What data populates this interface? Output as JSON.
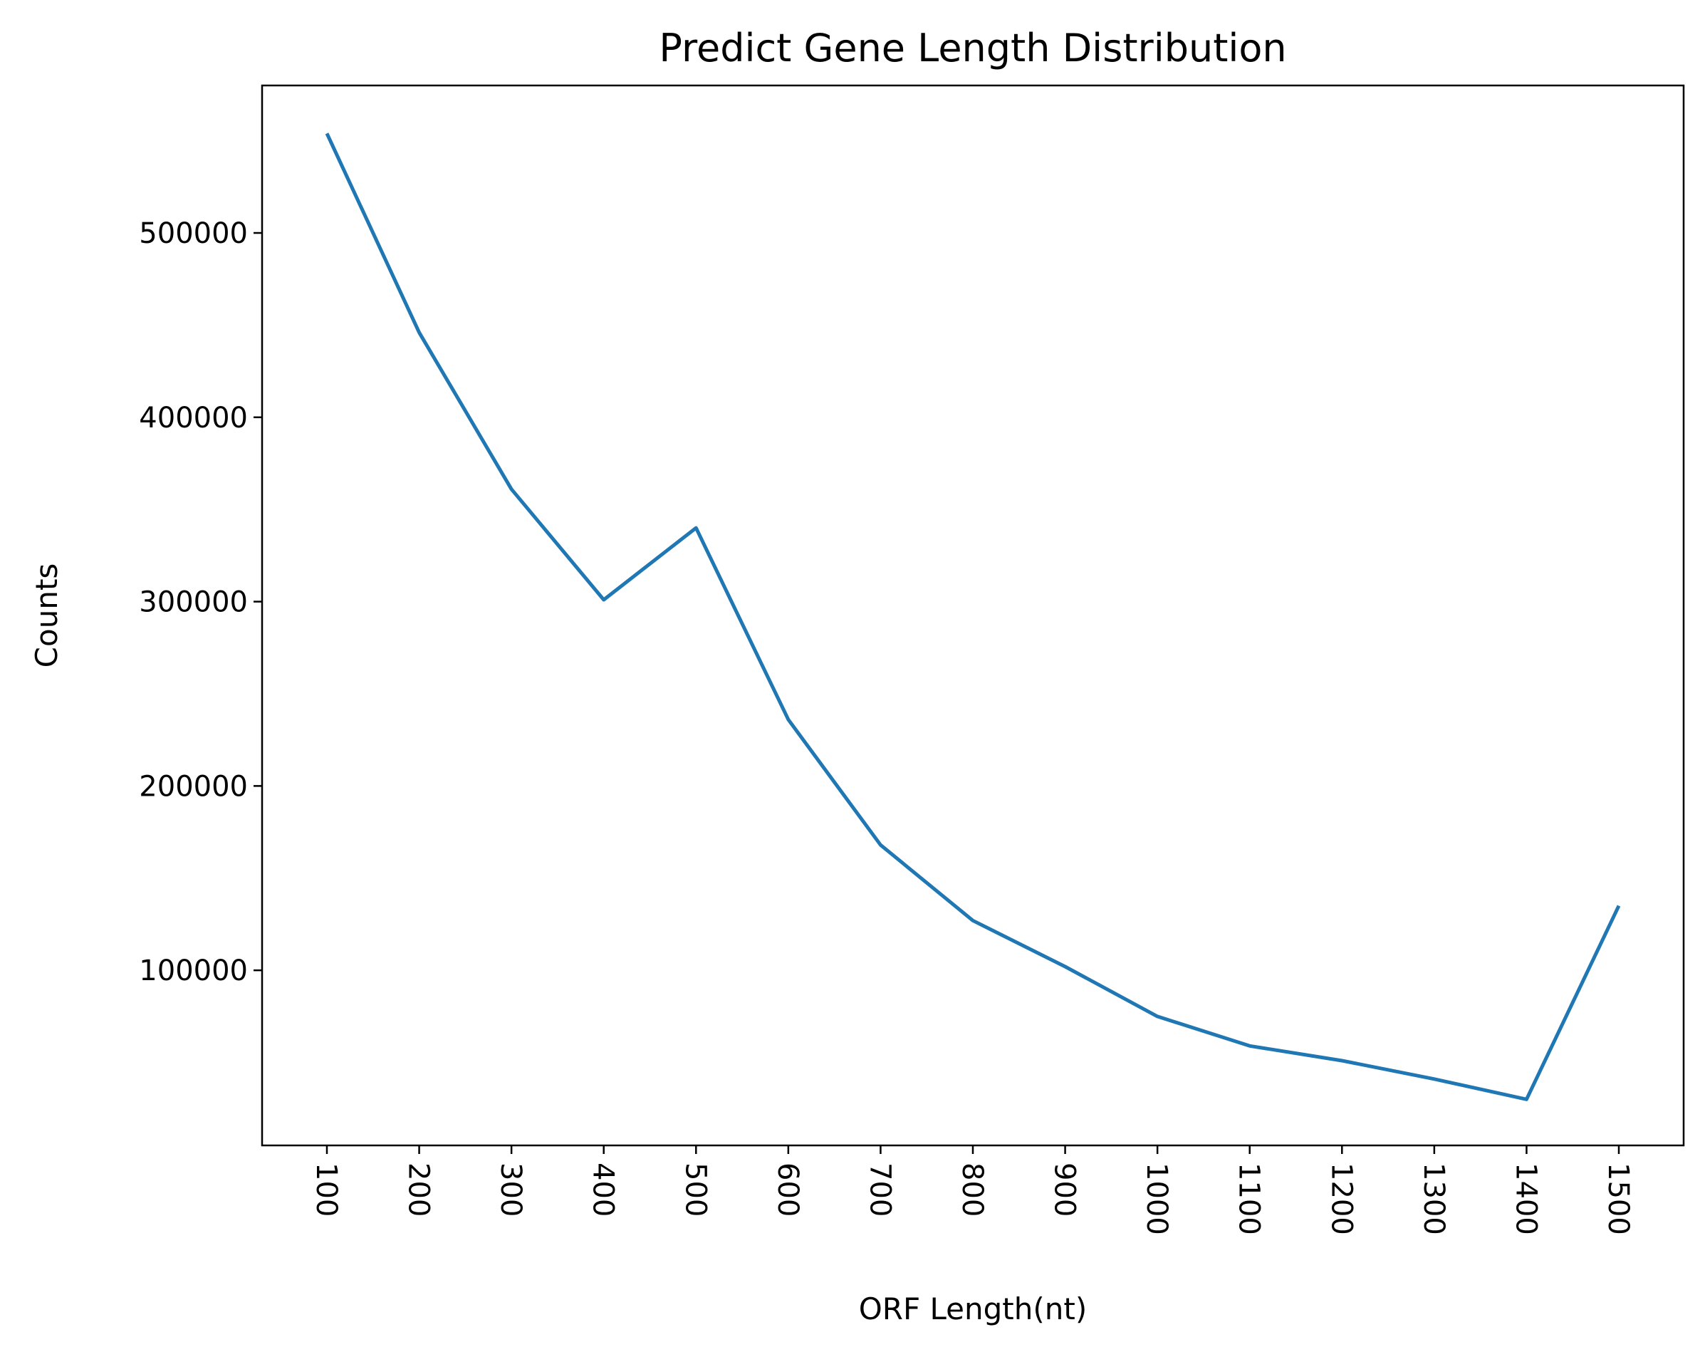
{
  "chart_data": {
    "type": "line",
    "title": "Predict Gene Length Distribution",
    "xlabel": "ORF Length(nt)",
    "ylabel": "Counts",
    "x": [
      "100",
      "200",
      "300",
      "400",
      "500",
      "600",
      "700",
      "800",
      "900",
      "1000",
      "1100",
      "1200",
      "1300",
      "1400",
      "1500"
    ],
    "series": [
      {
        "values": [
          554000,
          446000,
          361000,
          301000,
          340000,
          236000,
          168000,
          127000,
          102000,
          75000,
          59000,
          51000,
          41000,
          30000,
          135000
        ],
        "color": "#1f77b4"
      }
    ],
    "yticks": [
      "100000",
      "200000",
      "300000",
      "400000",
      "500000"
    ],
    "ylim": [
      5000,
      580000
    ],
    "grid": false,
    "legend": "none"
  }
}
